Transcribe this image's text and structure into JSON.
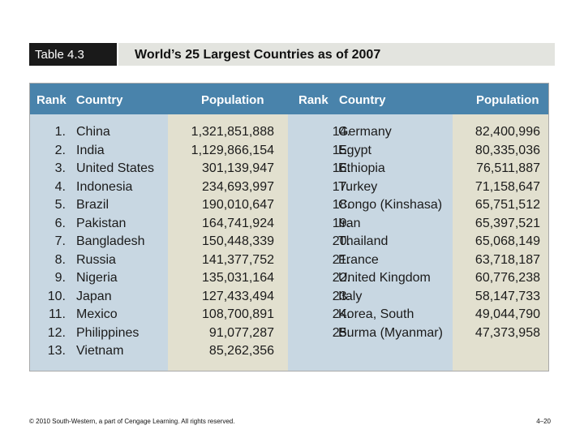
{
  "slide": {
    "table_label": "Table 4.3",
    "title": "World’s 25 Largest Countries as of 2007",
    "footer_left": "© 2010 South-Western, a part of Cengage Learning. All rights reserved.",
    "footer_right": "4–20"
  },
  "table": {
    "headers": {
      "rank_left": "Rank",
      "country_left": "Country",
      "population_left": "Population",
      "rank_right": "Rank",
      "country_right": "Country",
      "population_right": "Population"
    },
    "rows": [
      {
        "rank_l": "1.",
        "country_l": "China",
        "pop_l": "1,321,851,888",
        "rank_r": "14.",
        "country_r": "Germany",
        "pop_r": "82,400,996"
      },
      {
        "rank_l": "2.",
        "country_l": "India",
        "pop_l": "1,129,866,154",
        "rank_r": "15.",
        "country_r": "Egypt",
        "pop_r": "80,335,036"
      },
      {
        "rank_l": "3.",
        "country_l": "United States",
        "pop_l": "301,139,947",
        "rank_r": "16.",
        "country_r": "Ethiopia",
        "pop_r": "76,511,887"
      },
      {
        "rank_l": "4.",
        "country_l": "Indonesia",
        "pop_l": "234,693,997",
        "rank_r": "17.",
        "country_r": "Turkey",
        "pop_r": "71,158,647"
      },
      {
        "rank_l": "5.",
        "country_l": "Brazil",
        "pop_l": "190,010,647",
        "rank_r": "18.",
        "country_r": "Congo (Kinshasa)",
        "pop_r": "65,751,512"
      },
      {
        "rank_l": "6.",
        "country_l": "Pakistan",
        "pop_l": "164,741,924",
        "rank_r": "19.",
        "country_r": "Iran",
        "pop_r": "65,397,521"
      },
      {
        "rank_l": "7.",
        "country_l": "Bangladesh",
        "pop_l": "150,448,339",
        "rank_r": "20.",
        "country_r": "Thailand",
        "pop_r": "65,068,149"
      },
      {
        "rank_l": "8.",
        "country_l": "Russia",
        "pop_l": "141,377,752",
        "rank_r": "21.",
        "country_r": "France",
        "pop_r": "63,718,187"
      },
      {
        "rank_l": "9.",
        "country_l": "Nigeria",
        "pop_l": "135,031,164",
        "rank_r": "22.",
        "country_r": "United Kingdom",
        "pop_r": "60,776,238"
      },
      {
        "rank_l": "10.",
        "country_l": "Japan",
        "pop_l": "127,433,494",
        "rank_r": "23.",
        "country_r": "Italy",
        "pop_r": "58,147,733"
      },
      {
        "rank_l": "11.",
        "country_l": "Mexico",
        "pop_l": "108,700,891",
        "rank_r": "24.",
        "country_r": "Korea, South",
        "pop_r": "49,044,790"
      },
      {
        "rank_l": "12.",
        "country_l": "Philippines",
        "pop_l": "91,077,287",
        "rank_r": "25.",
        "country_r": "Burma (Myanmar)",
        "pop_r": "47,373,958"
      },
      {
        "rank_l": "13.",
        "country_l": "Vietnam",
        "pop_l": "85,262,356",
        "rank_r": "",
        "country_r": "",
        "pop_r": ""
      }
    ]
  }
}
